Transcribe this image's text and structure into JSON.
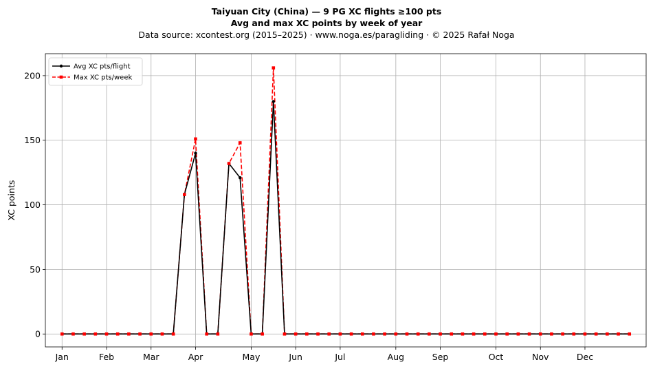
{
  "chart_data": {
    "type": "line",
    "title": "Taiyuan City (China)  —  9 PG XC flights ≥100 pts",
    "subtitle": "Avg and max XC points by week of year",
    "source": "Data source: xcontest.org (2015–2025)  ·  www.noga.es/paragliding  ·  © 2025 Rafał Noga",
    "xlabel": "",
    "ylabel": "XC points",
    "ylim": [
      -10,
      217
    ],
    "yticks": [
      0,
      50,
      100,
      150,
      200
    ],
    "xlim": [
      -0.5,
      53.5
    ],
    "xticks": [
      {
        "week": 1,
        "label": "Jan"
      },
      {
        "week": 5,
        "label": "Feb"
      },
      {
        "week": 9,
        "label": "Mar"
      },
      {
        "week": 13,
        "label": "Apr"
      },
      {
        "week": 18,
        "label": "May"
      },
      {
        "week": 22,
        "label": "Jun"
      },
      {
        "week": 26,
        "label": "Jul"
      },
      {
        "week": 31,
        "label": "Aug"
      },
      {
        "week": 35,
        "label": "Sep"
      },
      {
        "week": 40,
        "label": "Oct"
      },
      {
        "week": 44,
        "label": "Nov"
      },
      {
        "week": 48,
        "label": "Dec"
      }
    ],
    "grid": true,
    "legend_position": "top-left",
    "x": [
      1,
      2,
      3,
      4,
      5,
      6,
      7,
      8,
      9,
      10,
      11,
      12,
      13,
      14,
      15,
      16,
      17,
      18,
      19,
      20,
      21,
      22,
      23,
      24,
      25,
      26,
      27,
      28,
      29,
      30,
      31,
      32,
      33,
      34,
      35,
      36,
      37,
      38,
      39,
      40,
      41,
      42,
      43,
      44,
      45,
      46,
      47,
      48,
      49,
      50,
      51,
      52
    ],
    "series": [
      {
        "name": "Avg XC pts/flight",
        "color": "#000000",
        "style": "solid",
        "marker": "circle",
        "values": [
          0,
          0,
          0,
          0,
          0,
          0,
          0,
          0,
          0,
          0,
          0,
          108,
          140,
          0,
          0,
          132,
          121,
          0,
          0,
          180,
          0,
          0,
          0,
          0,
          0,
          0,
          0,
          0,
          0,
          0,
          0,
          0,
          0,
          0,
          0,
          0,
          0,
          0,
          0,
          0,
          0,
          0,
          0,
          0,
          0,
          0,
          0,
          0,
          0,
          0,
          0,
          0
        ]
      },
      {
        "name": "Max XC pts/week",
        "color": "#ff0000",
        "style": "dashed",
        "marker": "square",
        "values": [
          0,
          0,
          0,
          0,
          0,
          0,
          0,
          0,
          0,
          0,
          0,
          108,
          151,
          0,
          0,
          132,
          148,
          0,
          0,
          206,
          0,
          0,
          0,
          0,
          0,
          0,
          0,
          0,
          0,
          0,
          0,
          0,
          0,
          0,
          0,
          0,
          0,
          0,
          0,
          0,
          0,
          0,
          0,
          0,
          0,
          0,
          0,
          0,
          0,
          0,
          0,
          0
        ]
      }
    ]
  }
}
